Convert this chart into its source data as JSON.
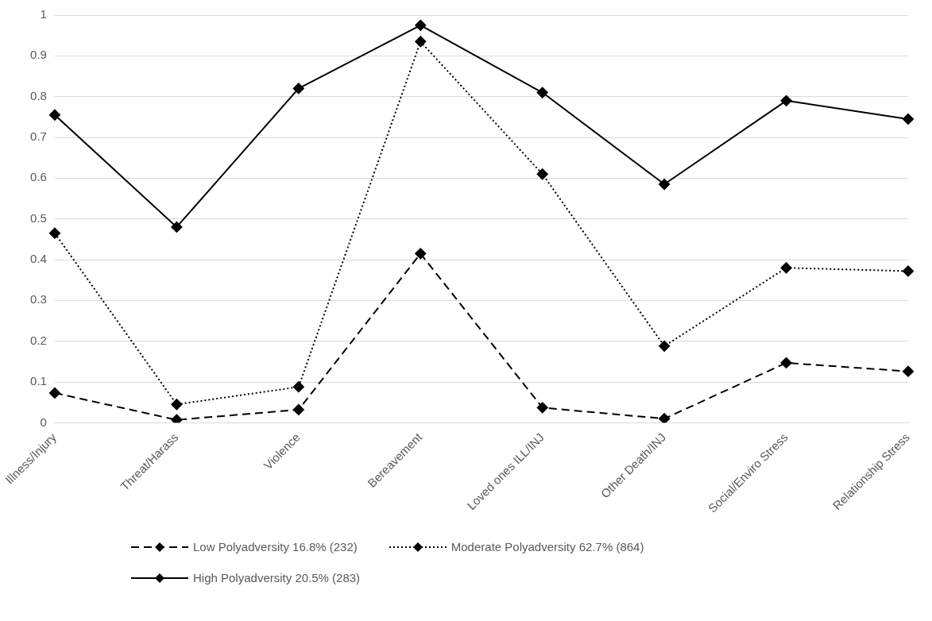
{
  "chart_data": {
    "type": "line",
    "categories": [
      "Illness/Injury",
      "Threat/Harass",
      "Violence",
      "Bereavement",
      "Loved ones ILL/INJ",
      "Other Death/INJ",
      "Social/Enviro Stress",
      "Relationship Stress"
    ],
    "series": [
      {
        "name": "Low Polyadversity 16.8% (232)",
        "color": "#000000",
        "line_style": "dashed",
        "values": [
          0.073,
          0.007,
          0.032,
          0.415,
          0.037,
          0.01,
          0.147,
          0.126
        ]
      },
      {
        "name": "Moderate Polyadversity 62.7% (864)",
        "color": "#000000",
        "line_style": "dotted",
        "values": [
          0.465,
          0.045,
          0.088,
          0.935,
          0.61,
          0.188,
          0.38,
          0.372
        ]
      },
      {
        "name": "High Polyadversity 20.5% (283)",
        "color": "#000000",
        "line_style": "solid",
        "values": [
          0.755,
          0.48,
          0.82,
          0.975,
          0.81,
          0.585,
          0.79,
          0.745
        ]
      }
    ],
    "ylim": [
      0,
      1
    ],
    "yticks": [
      0,
      {
        "value": 0.1,
        "label": "0.1"
      },
      {
        "value": 0.2,
        "label": "0.2"
      },
      {
        "value": 0.3,
        "label": "0.3"
      },
      {
        "value": 0.4,
        "label": "0.4"
      },
      {
        "value": 0.5,
        "label": "0.5"
      },
      {
        "value": 0.6,
        "label": "0.6"
      },
      {
        "value": 0.7,
        "label": "0.7"
      },
      {
        "value": 0.8,
        "label": "0.8"
      },
      {
        "value": 0.9,
        "label": "0.9"
      },
      1
    ],
    "grid": "y",
    "legend": "bottom",
    "marker": "diamond"
  }
}
